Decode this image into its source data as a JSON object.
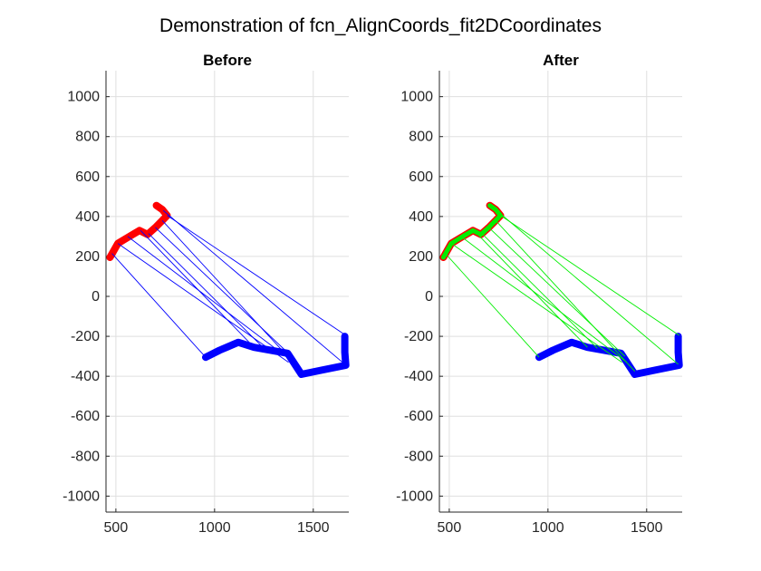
{
  "figure": {
    "title": "Demonstration of fcn_AlignCoords_fit2DCoordinates"
  },
  "colors": {
    "original_path": "#ff0000",
    "reference_path": "#0000ff",
    "aligned_path": "#00ee00",
    "before_links": "#0000ff",
    "after_links": "#00ee00",
    "grid": "#dfdfdf",
    "axis": "#262626"
  },
  "chart_data": [
    {
      "type": "line",
      "title": "Before",
      "xlabel": "",
      "ylabel": "",
      "xlim": [
        450,
        1680
      ],
      "ylim": [
        -1080,
        1130
      ],
      "xticks": [
        500,
        1000,
        1500
      ],
      "yticks": [
        -1000,
        -800,
        -600,
        -400,
        -200,
        0,
        200,
        400,
        600,
        800,
        1000
      ],
      "grid": true,
      "series": [
        {
          "role": "source",
          "color": "#ff0000",
          "points": [
            [
              470,
              195
            ],
            [
              510,
              265
            ],
            [
              560,
              295
            ],
            [
              620,
              330
            ],
            [
              660,
              310
            ],
            [
              700,
              345
            ],
            [
              730,
              375
            ],
            [
              760,
              405
            ],
            [
              735,
              435
            ],
            [
              705,
              455
            ]
          ]
        },
        {
          "role": "target",
          "color": "#0000ff",
          "points": [
            [
              955,
              -305
            ],
            [
              1025,
              -270
            ],
            [
              1120,
              -230
            ],
            [
              1200,
              -255
            ],
            [
              1370,
              -285
            ],
            [
              1440,
              -390
            ],
            [
              1540,
              -370
            ],
            [
              1665,
              -345
            ],
            [
              1660,
              -280
            ],
            [
              1660,
              -200
            ]
          ]
        }
      ],
      "links": {
        "color": "#0000ff",
        "pairs": [
          [
            [
              480,
              215
            ],
            [
              955,
              -305
            ]
          ],
          [
            [
              510,
              265
            ],
            [
              1375,
              -330
            ]
          ],
          [
            [
              560,
              300
            ],
            [
              1400,
              -330
            ]
          ],
          [
            [
              625,
              330
            ],
            [
              1200,
              -255
            ]
          ],
          [
            [
              665,
              315
            ],
            [
              1250,
              -260
            ]
          ],
          [
            [
              700,
              345
            ],
            [
              1390,
              -300
            ]
          ],
          [
            [
              735,
              380
            ],
            [
              1440,
              -375
            ]
          ],
          [
            [
              760,
              405
            ],
            [
              1665,
              -195
            ]
          ],
          [
            [
              740,
              430
            ],
            [
              1660,
              -340
            ]
          ]
        ]
      }
    },
    {
      "type": "line",
      "title": "After",
      "xlabel": "",
      "ylabel": "",
      "xlim": [
        450,
        1680
      ],
      "ylim": [
        -1080,
        1130
      ],
      "xticks": [
        500,
        1000,
        1500
      ],
      "yticks": [
        -1000,
        -800,
        -600,
        -400,
        -200,
        0,
        200,
        400,
        600,
        800,
        1000
      ],
      "grid": true,
      "series": [
        {
          "role": "source",
          "color": "#ff0000",
          "points": [
            [
              470,
              195
            ],
            [
              510,
              265
            ],
            [
              560,
              295
            ],
            [
              620,
              330
            ],
            [
              660,
              310
            ],
            [
              700,
              345
            ],
            [
              730,
              375
            ],
            [
              760,
              405
            ],
            [
              735,
              435
            ],
            [
              705,
              455
            ]
          ]
        },
        {
          "role": "aligned",
          "color": "#00ee00",
          "points": [
            [
              470,
              195
            ],
            [
              510,
              265
            ],
            [
              560,
              295
            ],
            [
              620,
              330
            ],
            [
              660,
              310
            ],
            [
              700,
              345
            ],
            [
              730,
              375
            ],
            [
              760,
              405
            ],
            [
              735,
              435
            ],
            [
              705,
              455
            ]
          ]
        },
        {
          "role": "target",
          "color": "#0000ff",
          "points": [
            [
              955,
              -305
            ],
            [
              1025,
              -270
            ],
            [
              1120,
              -230
            ],
            [
              1200,
              -255
            ],
            [
              1370,
              -285
            ],
            [
              1440,
              -390
            ],
            [
              1540,
              -370
            ],
            [
              1665,
              -345
            ],
            [
              1660,
              -280
            ],
            [
              1660,
              -200
            ]
          ]
        }
      ],
      "links": {
        "color": "#00ee00",
        "pairs": [
          [
            [
              480,
              215
            ],
            [
              955,
              -305
            ]
          ],
          [
            [
              510,
              265
            ],
            [
              1375,
              -330
            ]
          ],
          [
            [
              560,
              300
            ],
            [
              1400,
              -330
            ]
          ],
          [
            [
              625,
              330
            ],
            [
              1200,
              -255
            ]
          ],
          [
            [
              665,
              315
            ],
            [
              1250,
              -260
            ]
          ],
          [
            [
              700,
              345
            ],
            [
              1390,
              -300
            ]
          ],
          [
            [
              735,
              380
            ],
            [
              1440,
              -375
            ]
          ],
          [
            [
              760,
              405
            ],
            [
              1665,
              -195
            ]
          ],
          [
            [
              740,
              430
            ],
            [
              1660,
              -340
            ]
          ]
        ]
      }
    }
  ]
}
